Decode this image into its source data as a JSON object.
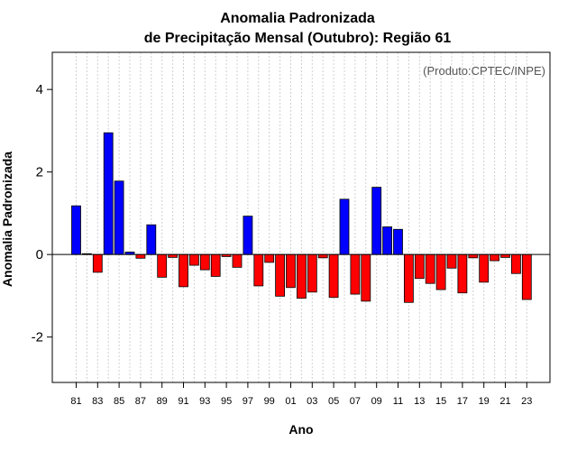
{
  "chart_data": {
    "type": "bar",
    "title_line1": "Anomalia Padronizada",
    "title_line2": "de Precipitação Mensal (Outubro): Região 61",
    "xlabel": "Ano",
    "ylabel": "Anomalia Padronizada",
    "annotation": "(Produto:CPTEC/INPE)",
    "ylim": [
      -3.1,
      4.9
    ],
    "yticks": [
      -2,
      0,
      2,
      4
    ],
    "xticks": [
      "81",
      "83",
      "85",
      "87",
      "89",
      "91",
      "93",
      "95",
      "97",
      "99",
      "01",
      "03",
      "05",
      "07",
      "09",
      "11",
      "13",
      "15",
      "17",
      "19",
      "21",
      "23"
    ],
    "colors": {
      "positive": "#0000ff",
      "negative": "#ff0000",
      "grid": "#d0d0d0",
      "axis": "#000000"
    },
    "categories": [
      "1981",
      "1982",
      "1983",
      "1984",
      "1985",
      "1986",
      "1987",
      "1988",
      "1989",
      "1990",
      "1991",
      "1992",
      "1993",
      "1994",
      "1995",
      "1996",
      "1997",
      "1998",
      "1999",
      "2000",
      "2001",
      "2002",
      "2003",
      "2004",
      "2005",
      "2006",
      "2007",
      "2008",
      "2009",
      "2010",
      "2011",
      "2012",
      "2013",
      "2014",
      "2015",
      "2016",
      "2017",
      "2018",
      "2019",
      "2020",
      "2021",
      "2022",
      "2023"
    ],
    "values": [
      1.18,
      0.02,
      -0.43,
      2.95,
      1.78,
      0.06,
      -0.09,
      0.72,
      -0.55,
      -0.07,
      -0.78,
      -0.26,
      -0.37,
      -0.53,
      -0.05,
      -0.31,
      0.93,
      -0.76,
      -0.19,
      -1.01,
      -0.8,
      -1.06,
      -0.91,
      -0.08,
      -1.04,
      1.34,
      -0.96,
      -1.13,
      1.63,
      0.67,
      0.61,
      -1.16,
      -0.58,
      -0.7,
      -0.85,
      -0.33,
      -0.93,
      -0.08,
      -0.67,
      -0.15,
      -0.07,
      -0.46,
      -1.09
    ]
  }
}
